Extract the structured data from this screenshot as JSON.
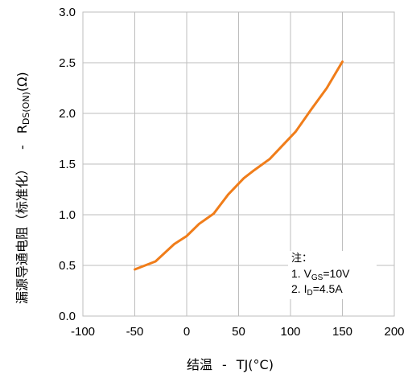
{
  "chart_data": {
    "type": "line",
    "xlabel_text": "结温",
    "xlabel_dash": "-",
    "xlabel_symbol": "TJ(°C)",
    "ylabel_text": "漏源导通电阻（标准化）",
    "ylabel_dash": "-",
    "ylabel_symbol": "R",
    "ylabel_subscript": "DS(ON)",
    "ylabel_unit": "(Ω)",
    "xlim": [
      -100,
      200
    ],
    "ylim": [
      0,
      3
    ],
    "x_ticks": [
      -100,
      -50,
      0,
      50,
      100,
      150,
      200
    ],
    "y_ticks": [
      "0.0",
      "0.5",
      "1.0",
      "1.5",
      "2.0",
      "2.5",
      "3.0"
    ],
    "grid": true,
    "series": [
      {
        "color": "#F07D1A",
        "x": [
          -50,
          -30,
          -12,
          0,
          12,
          26,
          40,
          55,
          65,
          80,
          92,
          105,
          120,
          135,
          150
        ],
        "y": [
          0.46,
          0.54,
          0.71,
          0.79,
          0.91,
          1.01,
          1.2,
          1.36,
          1.44,
          1.55,
          1.68,
          1.82,
          2.04,
          2.25,
          2.51
        ]
      }
    ],
    "annotation": {
      "title": "注：",
      "line1_prefix": "1. V",
      "line1_sub": "GS",
      "line1_suffix": "=10V",
      "line2_prefix": "2. I",
      "line2_sub": "D",
      "line2_suffix": "=4.5A"
    }
  }
}
